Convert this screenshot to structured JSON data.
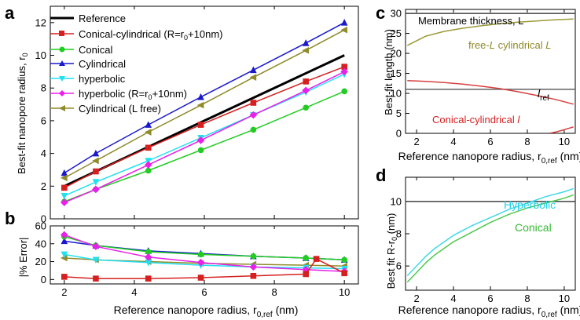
{
  "panels": [
    {
      "letter": "a",
      "type": "line",
      "ylabel": "Best-fit nanopore radius, r",
      "ylabel_sub": "0",
      "xlim": [
        1.6,
        10.4
      ],
      "ylim": [
        0,
        13
      ],
      "xticks": [
        2,
        4,
        6,
        8,
        10
      ],
      "yticks": [
        0,
        2,
        4,
        6,
        8,
        10,
        12
      ],
      "series": [
        {
          "name": "Reference",
          "color": "#000000",
          "marker": "none",
          "width": 3,
          "x": [
            2,
            10
          ],
          "y": [
            2,
            10
          ]
        },
        {
          "name": "Conical-cylindrical (R=r",
          "name_sub": "0",
          "name_tail": "+10nm)",
          "color": "#d62020",
          "marker": "square",
          "x": [
            2,
            2.9,
            4.4,
            5.9,
            7.4,
            8.9,
            10
          ],
          "y": [
            1.9,
            2.9,
            4.35,
            5.75,
            7.1,
            8.4,
            9.3
          ]
        },
        {
          "name": "Conical",
          "color": "#22cc22",
          "marker": "circle",
          "x": [
            2,
            2.9,
            4.4,
            5.9,
            7.4,
            8.9,
            10
          ],
          "y": [
            1.05,
            1.8,
            2.95,
            4.2,
            5.45,
            6.8,
            7.8
          ]
        },
        {
          "name": "Cylindrical",
          "color": "#1a1acc",
          "marker": "triangle-up",
          "x": [
            2,
            2.9,
            4.4,
            5.9,
            7.4,
            8.9,
            10
          ],
          "y": [
            2.8,
            4.0,
            5.75,
            7.45,
            9.1,
            10.75,
            12.0
          ]
        },
        {
          "name": "hyperbolic",
          "color": "#22e0f0",
          "marker": "triangle-down",
          "x": [
            2,
            2.9,
            4.4,
            5.9,
            7.4,
            8.9,
            10
          ],
          "y": [
            1.4,
            2.25,
            3.55,
            4.95,
            6.35,
            7.75,
            8.85
          ]
        },
        {
          "name": "hyperbolic (R=r",
          "name_sub": "0",
          "name_tail": "+10nm)",
          "color": "#e820e8",
          "marker": "diamond",
          "x": [
            2,
            2.9,
            4.4,
            5.9,
            7.4,
            8.9,
            10
          ],
          "y": [
            1.0,
            1.8,
            3.3,
            4.8,
            6.35,
            7.85,
            9.0
          ]
        },
        {
          "name": "Cylindrical (L free)",
          "color": "#8f8a2a",
          "marker": "triangle-left",
          "x": [
            2,
            2.9,
            4.4,
            5.9,
            7.4,
            8.9,
            10
          ],
          "y": [
            2.5,
            3.55,
            5.3,
            6.95,
            8.65,
            10.3,
            11.55
          ]
        }
      ]
    },
    {
      "letter": "b",
      "type": "line",
      "ylabel": "|% Error|",
      "xlabel": "Reference nanopore radius, r",
      "xlabel_sub": "0,ref",
      "xlabel_tail": " (nm)",
      "xlim": [
        1.6,
        10.4
      ],
      "ylim": [
        -5,
        60
      ],
      "xticks": [
        2,
        4,
        6,
        8,
        10
      ],
      "yticks": [
        0,
        20,
        40,
        60
      ],
      "series": [
        {
          "color": "#1a1acc",
          "marker": "triangle-up",
          "x": [
            2,
            2.9,
            4.4,
            5.9,
            7.4,
            8.9,
            10
          ],
          "y": [
            43,
            38,
            32,
            29,
            26,
            24,
            22
          ]
        },
        {
          "color": "#22cc22",
          "marker": "circle",
          "x": [
            2,
            2.9,
            4.4,
            5.9,
            7.4,
            8.9,
            10
          ],
          "y": [
            48,
            38,
            31,
            28,
            26,
            24,
            22
          ]
        },
        {
          "color": "#8f8a2a",
          "marker": "triangle-left",
          "x": [
            2,
            2.9,
            4.4,
            5.9,
            7.4,
            8.9,
            10
          ],
          "y": [
            24,
            22,
            20,
            18,
            17,
            16,
            15
          ]
        },
        {
          "color": "#22e0f0",
          "marker": "triangle-down",
          "x": [
            2,
            2.9,
            4.4,
            5.9,
            7.4,
            8.9,
            10
          ],
          "y": [
            28,
            22,
            19,
            16,
            14,
            13,
            12
          ]
        },
        {
          "color": "#e820e8",
          "marker": "diamond",
          "x": [
            2,
            2.9,
            4.4,
            5.9,
            7.4,
            8.9,
            10
          ],
          "y": [
            50,
            37,
            25,
            19,
            14,
            11,
            9
          ]
        },
        {
          "color": "#d62020",
          "marker": "square",
          "x": [
            2,
            2.9,
            4.4,
            5.9,
            7.4,
            8.9,
            9.2,
            10
          ],
          "y": [
            3,
            1,
            1,
            2,
            4,
            6,
            23,
            7
          ]
        }
      ]
    },
    {
      "letter": "c",
      "type": "line",
      "ylabel": "Best-fit length (nm)",
      "xlabel": "Reference nanopore radius, r",
      "xlabel_sub": "0,ref",
      "xlabel_tail": " (nm)",
      "xlim": [
        1.4,
        10.6
      ],
      "ylim": [
        0,
        31
      ],
      "xticks": [
        2,
        4,
        6,
        8,
        10
      ],
      "yticks": [
        0,
        5,
        10,
        15,
        20,
        25,
        30
      ],
      "series": [
        {
          "color": "#404040",
          "marker": "none",
          "x": [
            1.4,
            10.6
          ],
          "y": [
            30,
            30
          ]
        },
        {
          "color": "#606060",
          "marker": "none",
          "x": [
            1.4,
            10.6
          ],
          "y": [
            11,
            11
          ]
        },
        {
          "color": "#9c9a3a",
          "marker": "none",
          "x": [
            1.5,
            2.5,
            3.5,
            4.5,
            5.5,
            6.5,
            7.5,
            8.5,
            9.5,
            10.5
          ],
          "y": [
            22.0,
            24.3,
            25.5,
            26.3,
            26.9,
            27.4,
            27.8,
            28.1,
            28.4,
            28.6
          ]
        },
        {
          "color": "#d64040",
          "marker": "none",
          "x": [
            1.5,
            2.5,
            3.5,
            4.5,
            5.5,
            6.5,
            7.5,
            8.5,
            9.5,
            10.5
          ],
          "y": [
            13.2,
            13.0,
            12.7,
            12.3,
            11.8,
            11.2,
            10.4,
            9.5,
            8.5,
            7.3
          ]
        },
        {
          "color": "#d64040",
          "marker": "none",
          "x": [
            9.2,
            9.6,
            10.0,
            10.5
          ],
          "y": [
            0,
            0.4,
            0.9,
            1.6
          ]
        }
      ]
    },
    {
      "letter": "d",
      "type": "line",
      "ylabel": "Best fit R-r",
      "ylabel_sub": "0",
      "ylabel_tail": " (nm)",
      "xlabel": "Reference nanopore radius, r",
      "xlabel_sub": "0,ref",
      "xlabel_tail": " (nm)",
      "xlim": [
        1.4,
        10.6
      ],
      "ylim": [
        4.5,
        11.5
      ],
      "xticks": [
        2,
        4,
        6,
        8,
        10
      ],
      "yticks": [
        6,
        8,
        10
      ],
      "series": [
        {
          "color": "#404040",
          "marker": "none",
          "x": [
            1.4,
            10.6
          ],
          "y": [
            10,
            10
          ]
        },
        {
          "color": "#40d8e8",
          "marker": "none",
          "x": [
            1.5,
            2.0,
            2.5,
            3.0,
            4.0,
            5.0,
            6.0,
            7.0,
            8.0,
            9.0,
            10.0,
            10.5
          ],
          "y": [
            5.4,
            6.0,
            6.6,
            7.1,
            7.9,
            8.5,
            9.0,
            9.5,
            9.9,
            10.3,
            10.6,
            10.8
          ]
        },
        {
          "color": "#50c850",
          "marker": "none",
          "x": [
            1.5,
            2.0,
            2.5,
            3.0,
            4.0,
            5.0,
            6.0,
            7.0,
            8.0,
            9.0,
            10.0,
            10.5
          ],
          "y": [
            5.0,
            5.6,
            6.2,
            6.7,
            7.5,
            8.1,
            8.7,
            9.2,
            9.6,
            9.9,
            10.2,
            10.4
          ]
        }
      ]
    }
  ],
  "annotations": {
    "c_membrane": "Membrane thickness, L",
    "c_free_pre": "free-",
    "c_free_L1": "L",
    "c_free_mid": " cylindrical ",
    "c_free_L2": "L",
    "c_lref": "l",
    "c_lref_sub": "ref",
    "c_conical": "Conical-cylindrical ",
    "c_conical_l": "l",
    "d_hyperbolic": "Hyperbolic",
    "d_conical": "Conical"
  },
  "colors": {
    "annot_olive": "#8f8a2a",
    "annot_red": "#d62020",
    "annot_cyan": "#22d0e8",
    "annot_green": "#33bb33"
  }
}
